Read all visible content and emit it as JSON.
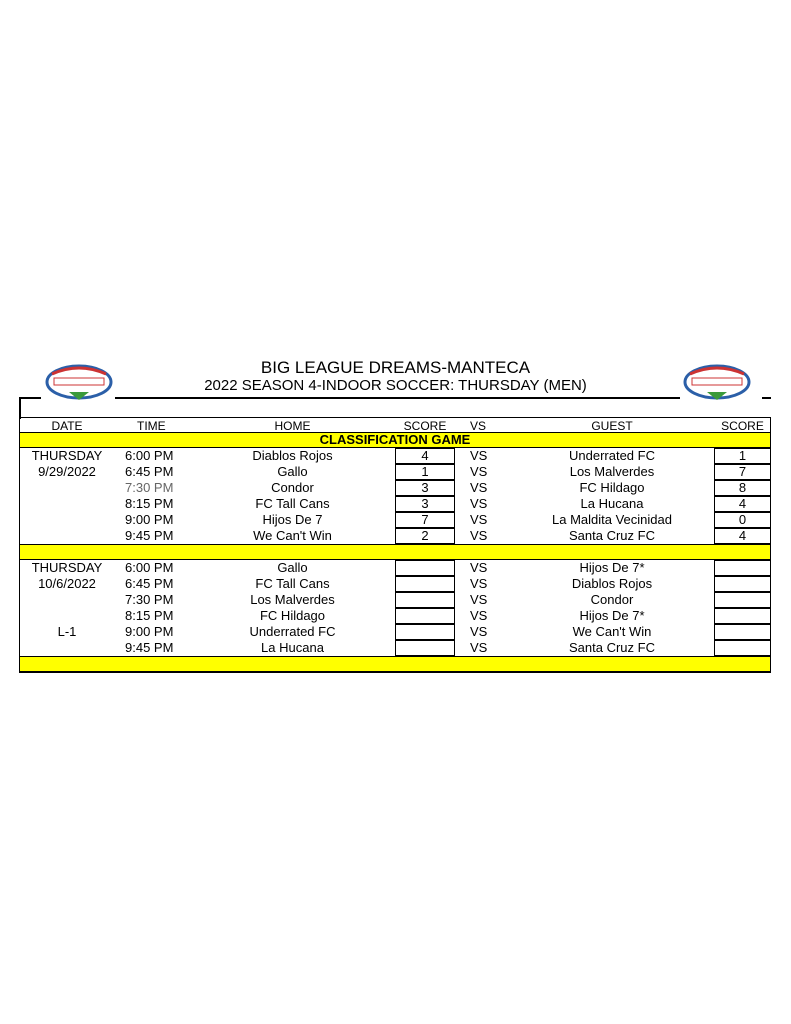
{
  "header": {
    "title": "BIG LEAGUE DREAMS-MANTECA",
    "subtitle": "2022 SEASON 4-INDOOR SOCCER: THURSDAY (MEN)",
    "logo_text": "BIG LEAGUE DREAMS"
  },
  "columns": {
    "date": "DATE",
    "time": "TIME",
    "home": "HOME",
    "home_score": "SCORE",
    "vs": "VS",
    "guest": "GUEST",
    "guest_score": "SCORE"
  },
  "section1": {
    "label": "CLASSIFICATION GAME",
    "day": "THURSDAY",
    "date": "9/29/2022",
    "games": [
      {
        "time": "6:00 PM",
        "home": "Diablos Rojos",
        "home_score": "4",
        "vs": "VS",
        "guest": "Underrated FC",
        "guest_score": "1"
      },
      {
        "time": "6:45 PM",
        "home": "Gallo",
        "home_score": "1",
        "vs": "VS",
        "guest": "Los Malverdes",
        "guest_score": "7"
      },
      {
        "time": "7:30 PM",
        "home": "Condor",
        "home_score": "3",
        "vs": "VS",
        "guest": "FC Hildago",
        "guest_score": "8"
      },
      {
        "time": "8:15 PM",
        "home": "FC Tall Cans",
        "home_score": "3",
        "vs": "VS",
        "guest": "La Hucana",
        "guest_score": "4"
      },
      {
        "time": "9:00 PM",
        "home": "Hijos De 7",
        "home_score": "7",
        "vs": "VS",
        "guest": "La Maldita Vecinidad",
        "guest_score": "0"
      },
      {
        "time": "9:45 PM",
        "home": "We Can't Win",
        "home_score": "2",
        "vs": "VS",
        "guest": "Santa Cruz FC",
        "guest_score": "4"
      }
    ]
  },
  "section2": {
    "day": "THURSDAY",
    "date": "10/6/2022",
    "league": "L-1",
    "games": [
      {
        "time": "6:00 PM",
        "home": "Gallo",
        "home_score": "",
        "vs": "VS",
        "guest": "Hijos De 7*",
        "guest_score": ""
      },
      {
        "time": "6:45 PM",
        "home": "FC Tall Cans",
        "home_score": "",
        "vs": "VS",
        "guest": "Diablos Rojos",
        "guest_score": ""
      },
      {
        "time": "7:30 PM",
        "home": "Los Malverdes",
        "home_score": "",
        "vs": "VS",
        "guest": "Condor",
        "guest_score": ""
      },
      {
        "time": "8:15 PM",
        "home": "FC Hildago",
        "home_score": "",
        "vs": "VS",
        "guest": "Hijos De 7*",
        "guest_score": ""
      },
      {
        "time": "9:00 PM",
        "home": "Underrated FC",
        "home_score": "",
        "vs": "VS",
        "guest": "We Can't Win",
        "guest_score": ""
      },
      {
        "time": "9:45 PM",
        "home": "La Hucana",
        "home_score": "",
        "vs": "VS",
        "guest": "Santa Cruz FC",
        "guest_score": ""
      }
    ]
  },
  "colors": {
    "highlight": "#ffff00"
  }
}
